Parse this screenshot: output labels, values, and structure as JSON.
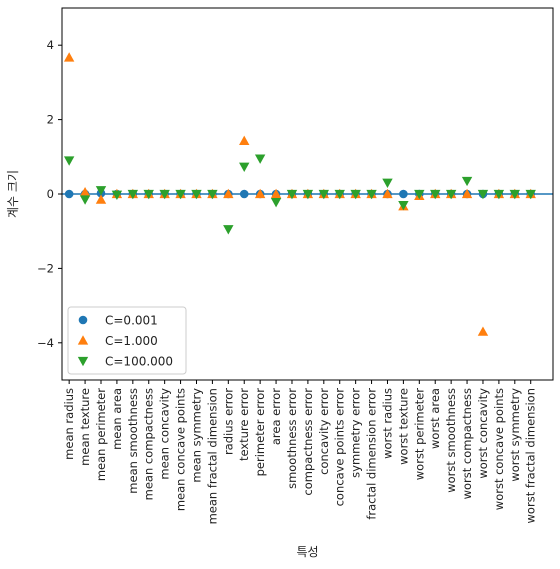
{
  "chart_data": {
    "type": "scatter",
    "title": "",
    "xlabel": "특성",
    "ylabel": "계수 크기",
    "ylim": [
      -5,
      5
    ],
    "yticks": [
      -4,
      -2,
      0,
      2,
      4
    ],
    "ytick_labels": [
      "−4",
      "−2",
      "0",
      "2",
      "4"
    ],
    "legend_position": "lower-left",
    "hline_y": 0,
    "categories": [
      "mean radius",
      "mean texture",
      "mean perimeter",
      "mean area",
      "mean smoothness",
      "mean compactness",
      "mean concavity",
      "mean concave points",
      "mean symmetry",
      "mean fractal dimension",
      "radius error",
      "texture error",
      "perimeter error",
      "area error",
      "smoothness error",
      "compactness error",
      "concavity error",
      "concave points error",
      "symmetry error",
      "fractal dimension error",
      "worst radius",
      "worst texture",
      "worst perimeter",
      "worst area",
      "worst smoothness",
      "worst compactness",
      "worst concavity",
      "worst concave points",
      "worst symmetry",
      "worst fractal dimension"
    ],
    "series": [
      {
        "name": "C=0.001",
        "marker": "circle",
        "color": "#1f77b4",
        "values": [
          0.0,
          0.0,
          0.02,
          0.0,
          0.0,
          0.0,
          0.0,
          0.0,
          0.0,
          0.0,
          0.0,
          0.0,
          0.0,
          0.0,
          0.0,
          0.0,
          0.0,
          0.0,
          0.0,
          0.0,
          0.0,
          0.0,
          0.0,
          0.0,
          0.0,
          0.0,
          0.0,
          0.0,
          0.0,
          0.0
        ]
      },
      {
        "name": "C=1.000",
        "marker": "triangle-up",
        "color": "#ff7f0e",
        "values": [
          3.67,
          0.05,
          -0.15,
          0.0,
          0.0,
          0.0,
          0.0,
          0.0,
          0.0,
          0.0,
          0.0,
          1.43,
          0.0,
          0.0,
          0.0,
          0.0,
          0.0,
          0.0,
          0.0,
          0.0,
          0.0,
          -0.33,
          -0.05,
          0.0,
          0.0,
          0.0,
          -3.7,
          0.0,
          0.0,
          0.0
        ]
      },
      {
        "name": "C=100.000",
        "marker": "triangle-down",
        "color": "#2ca02c",
        "values": [
          0.9,
          -0.15,
          0.1,
          -0.02,
          0.0,
          0.0,
          0.0,
          0.0,
          0.0,
          0.0,
          -0.95,
          0.73,
          0.95,
          -0.22,
          0.0,
          0.0,
          0.0,
          0.0,
          0.0,
          0.0,
          0.3,
          -0.3,
          0.0,
          0.0,
          0.0,
          0.35,
          0.0,
          0.0,
          0.0,
          0.0
        ]
      }
    ]
  }
}
